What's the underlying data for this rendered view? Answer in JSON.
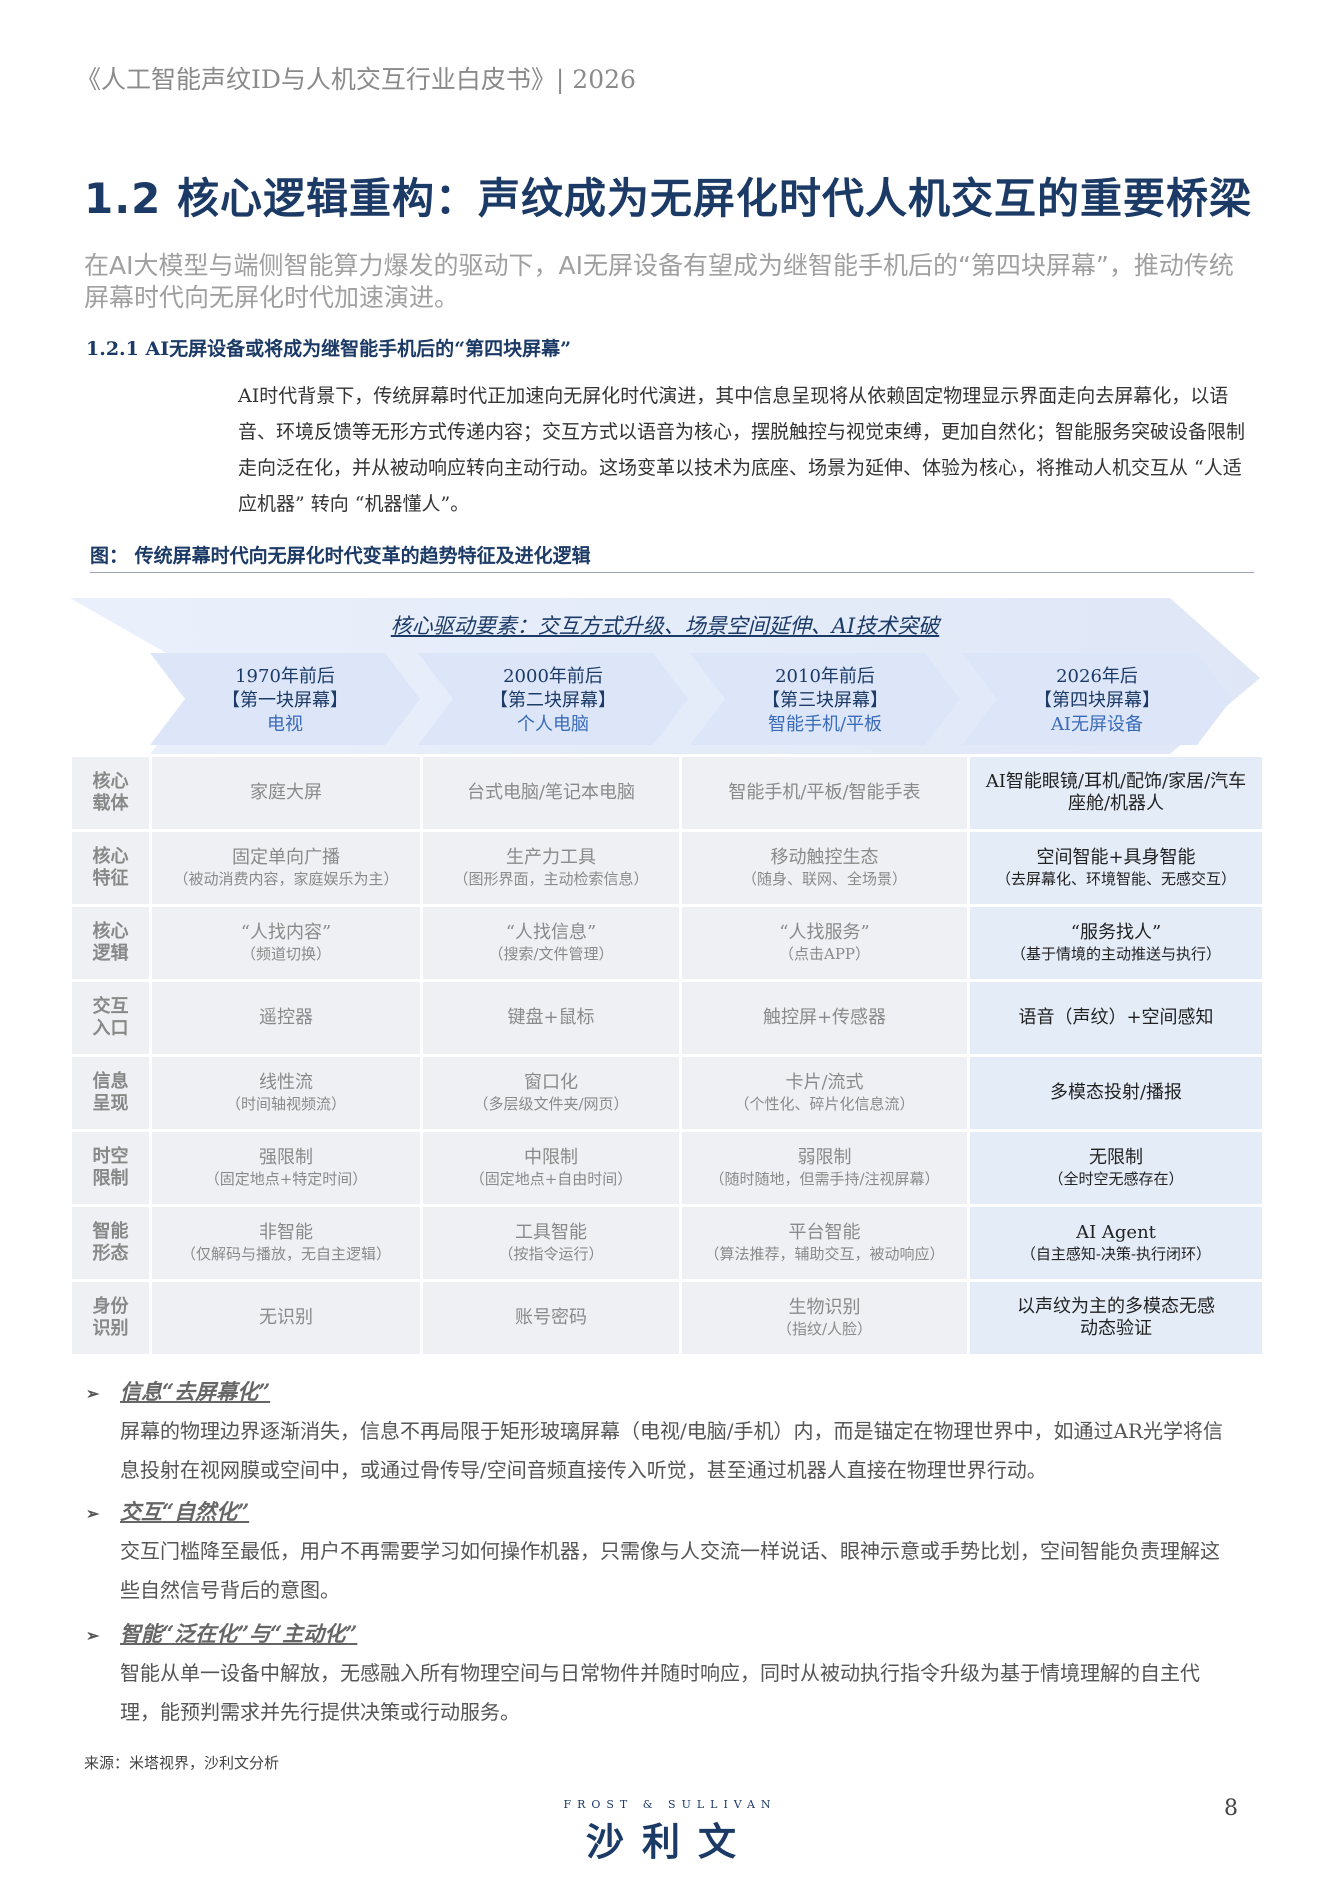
{
  "header": "《人工智能声纹ID与人机交互行业白皮书》| 2026",
  "title": "1.2 核心逻辑重构：声纹成为无屏化时代人机交互的重要桥梁",
  "lead": "在AI大模型与端侧智能算力爆发的驱动下，AI无屏设备有望成为继智能手机后的“第四块屏幕”，推动传统屏幕时代向无屏化时代加速演进。",
  "subsection": "1.2.1 AI无屏设备或将成为继智能手机后的“第四块屏幕”",
  "paragraph": "AI时代背景下，传统屏幕时代正加速向无屏化时代演进，其中信息呈现将从依赖固定物理显示界面走向去屏幕化，以语音、环境反馈等无形方式传递内容；交互方式以语音为核心，摆脱触控与视觉束缚，更加自然化；智能服务突破设备限制走向泛在化，并从被动响应转向主动行动。这场变革以技术为底座、场景为延伸、体验为核心，将推动人机交互从 “人适应机器” 转向 “机器懂人”。",
  "figure_caption": "图： 传统屏幕时代向无屏化时代变革的趋势特征及进化逻辑",
  "motto": "核心驱动要素：交互方式升级、场景空间延伸、AI技术突破",
  "eras": [
    {
      "year": "1970年前后",
      "screen": "【第一块屏幕】",
      "device": "电视"
    },
    {
      "year": "2000年前后",
      "screen": "【第二块屏幕】",
      "device": "个人电脑"
    },
    {
      "year": "2010年前后",
      "screen": "【第三块屏幕】",
      "device": "智能手机/平板"
    },
    {
      "year": "2026年后",
      "screen": "【第四块屏幕】",
      "device": "AI无屏设备"
    }
  ],
  "rows": [
    {
      "label": "核心\n载体",
      "cells": [
        [
          "家庭大屏",
          ""
        ],
        [
          "台式电脑/笔记本电脑",
          ""
        ],
        [
          "智能手机/平板/智能手表",
          ""
        ],
        [
          "AI智能眼镜/耳机/配饰/家居/汽车座舱/机器人",
          ""
        ]
      ]
    },
    {
      "label": "核心\n特征",
      "cells": [
        [
          "固定单向广播",
          "（被动消费内容，家庭娱乐为主）"
        ],
        [
          "生产力工具",
          "（图形界面，主动检索信息）"
        ],
        [
          "移动触控生态",
          "（随身、联网、全场景）"
        ],
        [
          "空间智能+具身智能",
          "（去屏幕化、环境智能、无感交互）"
        ]
      ]
    },
    {
      "label": "核心\n逻辑",
      "cells": [
        [
          "“人找内容”",
          "（频道切换）"
        ],
        [
          "“人找信息”",
          "（搜索/文件管理）"
        ],
        [
          "“人找服务”",
          "（点击APP）"
        ],
        [
          "“服务找人”",
          "（基于情境的主动推送与执行）"
        ]
      ]
    },
    {
      "label": "交互\n入口",
      "cells": [
        [
          "遥控器",
          ""
        ],
        [
          "键盘+鼠标",
          ""
        ],
        [
          "触控屏+传感器",
          ""
        ],
        [
          "语音（声纹）+空间感知",
          ""
        ]
      ]
    },
    {
      "label": "信息\n呈现",
      "cells": [
        [
          "线性流",
          "（时间轴视频流）"
        ],
        [
          "窗口化",
          "（多层级文件夹/网页）"
        ],
        [
          "卡片/流式",
          "（个性化、碎片化信息流）"
        ],
        [
          "多模态投射/播报",
          ""
        ]
      ]
    },
    {
      "label": "时空\n限制",
      "cells": [
        [
          "强限制",
          "（固定地点+特定时间）"
        ],
        [
          "中限制",
          "（固定地点+自由时间）"
        ],
        [
          "弱限制",
          "（随时随地，但需手持/注视屏幕）"
        ],
        [
          "无限制",
          "（全时空无感存在）"
        ]
      ]
    },
    {
      "label": "智能\n形态",
      "cells": [
        [
          "非智能",
          "（仅解码与播放，无自主逻辑）"
        ],
        [
          "工具智能",
          "（按指令运行）"
        ],
        [
          "平台智能",
          "（算法推荐，辅助交互，被动响应）"
        ],
        [
          "AI Agent",
          "（自主感知-决策-执行闭环）"
        ]
      ]
    },
    {
      "label": "身份\n识别",
      "cells": [
        [
          "无识别",
          ""
        ],
        [
          "账号密码",
          ""
        ],
        [
          "生物识别",
          "（指纹/人脸）"
        ],
        [
          "以声纹为主的多模态无感动态验证",
          ""
        ]
      ]
    }
  ],
  "bullets": [
    {
      "title": "信息“去屏幕化”",
      "text": "屏幕的物理边界逐渐消失，信息不再局限于矩形玻璃屏幕（电视/电脑/手机）内，而是锚定在物理世界中，如通过AR光学将信息投射在视网膜或空间中，或通过骨传导/空间音频直接传入听觉，甚至通过机器人直接在物理世界行动。"
    },
    {
      "title": "交互“自然化”",
      "text": "交互门槛降至最低，用户不再需要学习如何操作机器，只需像与人交流一样说话、眼神示意或手势比划，空间智能负责理解这些自然信号背后的意图。"
    },
    {
      "title": "智能“泛在化”与“主动化”",
      "text": "智能从单一设备中解放，无感融入所有物理空间与日常物件并随时响应，同时从被动执行指令升级为基于情境理解的自主代理，能预判需求并先行提供决策或行动服务。"
    }
  ],
  "source": "来源：米塔视界，沙利文分析",
  "logo": {
    "en": "FROST & SULLIVAN",
    "zh": "沙利文"
  },
  "page_number": "8",
  "colors": {
    "navy": "#1c3a66",
    "cell": "#eef0f4",
    "highlight": "#e4ecf8"
  }
}
